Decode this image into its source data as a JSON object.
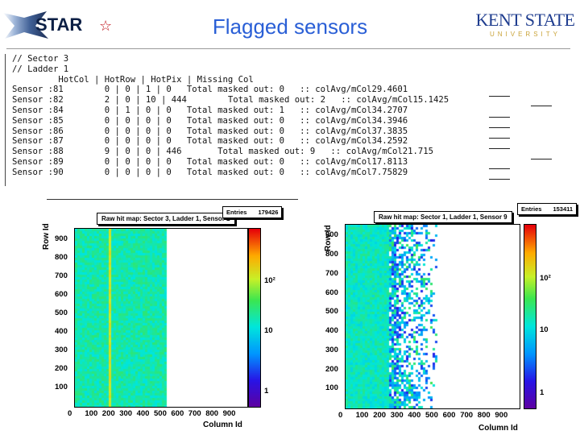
{
  "header": {
    "star_text": "STAR",
    "title": "Flagged sensors",
    "kent_line1": "KENT STATE",
    "kent_line2": "UNIVERSITY"
  },
  "code_lines": [
    "// Sector 3",
    "// Ladder 1",
    "         HotCol | HotRow | HotPix | Missing Col",
    "Sensor :81        0 | 0 | 1 | 0   Total masked out: 0   :: colAvg/mCol29.4601",
    "Sensor :82        2 | 0 | 10 | 444        Total masked out: 2   :: colAvg/mCol15.1425",
    "Sensor :84        0 | 1 | 0 | 0   Total masked out: 1   :: colAvg/mCol34.2707",
    "Sensor :85        0 | 0 | 0 | 0   Total masked out: 0   :: colAvg/mCol34.3946",
    "Sensor :86        0 | 0 | 0 | 0   Total masked out: 0   :: colAvg/mCol37.3835",
    "Sensor :87        0 | 0 | 0 | 0   Total masked out: 0   :: colAvg/mCol34.2592",
    "Sensor :88        9 | 0 | 0 | 446       Total masked out: 9   :: colAvg/mCol21.715",
    "Sensor :89        0 | 0 | 0 | 0   Total masked out: 0   :: colAvg/mCol17.8113",
    "Sensor :90        0 | 0 | 0 | 0   Total masked out: 0   :: colAvg/mCol7.75829"
  ],
  "plots": [
    {
      "title": "Raw hit map: Sector 3, Ladder 1, Sensor 2",
      "entries_label": "Entries",
      "entries_value": "179426",
      "xlabel": "Column Id",
      "ylabel": "Row Id",
      "xticks": [
        "0",
        "100",
        "200",
        "300",
        "400",
        "500",
        "600",
        "700",
        "800",
        "900"
      ],
      "yticks": [
        "100",
        "200",
        "300",
        "400",
        "500",
        "600",
        "700",
        "800",
        "900"
      ],
      "zticks": [
        "1",
        "10",
        "10²"
      ]
    },
    {
      "title": "Raw hit map: Sector 1, Ladder 1, Sensor 9",
      "entries_label": "Entries",
      "entries_value": "153411",
      "xlabel": "Column Id",
      "ylabel": "Row Id",
      "xticks": [
        "0",
        "100",
        "200",
        "300",
        "400",
        "500",
        "600",
        "700",
        "800",
        "900"
      ],
      "yticks": [
        "100",
        "200",
        "300",
        "400",
        "500",
        "600",
        "700",
        "800",
        "900"
      ],
      "zticks": [
        "1",
        "10",
        "10²"
      ]
    }
  ],
  "colors": {
    "title_blue": "#2a5fd6",
    "kent_blue": "#1f3d8f",
    "kent_gold": "#caa43a",
    "star_red": "#c0141c"
  }
}
